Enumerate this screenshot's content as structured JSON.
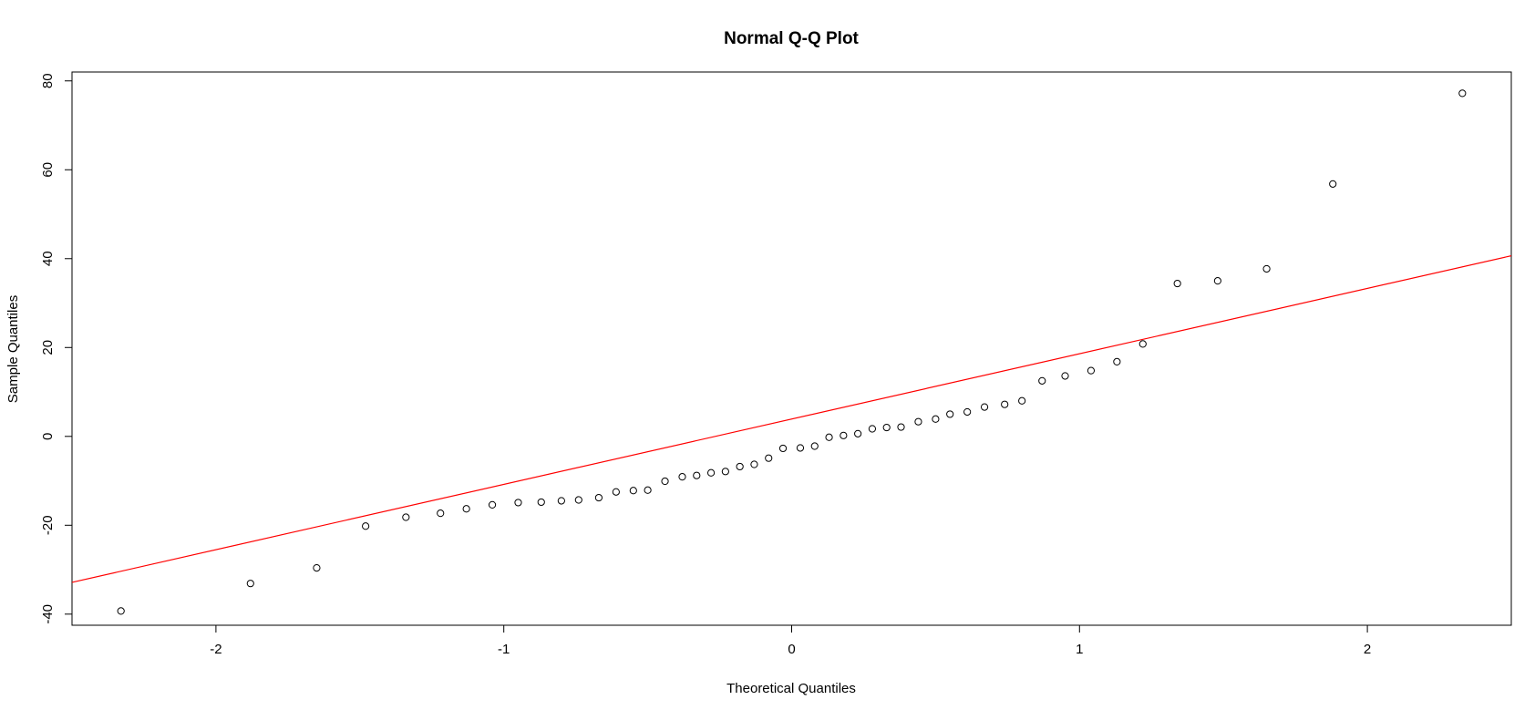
{
  "chart_data": {
    "type": "scatter",
    "title": "Normal Q-Q Plot",
    "xlabel": "Theoretical Quantiles",
    "ylabel": "Sample Quantiles",
    "xlim": [
      -2.5,
      2.5
    ],
    "ylim": [
      -42.5,
      82
    ],
    "xticks": [
      -2,
      -1,
      0,
      1,
      2
    ],
    "yticks": [
      -40,
      -20,
      0,
      20,
      40,
      60,
      80
    ],
    "xtick_labels": [
      "-2",
      "-1",
      "0",
      "1",
      "2"
    ],
    "ytick_labels": [
      "-40",
      "-20",
      "0",
      "20",
      "40",
      "60",
      "80"
    ],
    "grid": false,
    "legend": "none",
    "colors": {
      "points": "#000000",
      "reference_line": "#ff0000",
      "frame": "#000000",
      "background": "#ffffff"
    },
    "points": [
      {
        "x": -2.33,
        "y": -39.3
      },
      {
        "x": -1.88,
        "y": -33.1
      },
      {
        "x": -1.65,
        "y": -29.6
      },
      {
        "x": -1.48,
        "y": -20.2
      },
      {
        "x": -1.34,
        "y": -18.2
      },
      {
        "x": -1.22,
        "y": -17.3
      },
      {
        "x": -1.13,
        "y": -16.3
      },
      {
        "x": -1.04,
        "y": -15.4
      },
      {
        "x": -0.95,
        "y": -14.9
      },
      {
        "x": -0.87,
        "y": -14.8
      },
      {
        "x": -0.8,
        "y": -14.5
      },
      {
        "x": -0.74,
        "y": -14.3
      },
      {
        "x": -0.67,
        "y": -13.8
      },
      {
        "x": -0.61,
        "y": -12.5
      },
      {
        "x": -0.55,
        "y": -12.2
      },
      {
        "x": -0.5,
        "y": -12.1
      },
      {
        "x": -0.44,
        "y": -10.1
      },
      {
        "x": -0.38,
        "y": -9.1
      },
      {
        "x": -0.33,
        "y": -8.8
      },
      {
        "x": -0.28,
        "y": -8.2
      },
      {
        "x": -0.23,
        "y": -7.9
      },
      {
        "x": -0.18,
        "y": -6.8
      },
      {
        "x": -0.13,
        "y": -6.3
      },
      {
        "x": -0.08,
        "y": -4.9
      },
      {
        "x": -0.03,
        "y": -2.7
      },
      {
        "x": 0.03,
        "y": -2.6
      },
      {
        "x": 0.08,
        "y": -2.2
      },
      {
        "x": 0.13,
        "y": -0.2
      },
      {
        "x": 0.18,
        "y": 0.2
      },
      {
        "x": 0.23,
        "y": 0.6
      },
      {
        "x": 0.28,
        "y": 1.7
      },
      {
        "x": 0.33,
        "y": 2.0
      },
      {
        "x": 0.38,
        "y": 2.1
      },
      {
        "x": 0.44,
        "y": 3.3
      },
      {
        "x": 0.5,
        "y": 3.9
      },
      {
        "x": 0.55,
        "y": 5.0
      },
      {
        "x": 0.61,
        "y": 5.5
      },
      {
        "x": 0.67,
        "y": 6.6
      },
      {
        "x": 0.74,
        "y": 7.2
      },
      {
        "x": 0.8,
        "y": 8.0
      },
      {
        "x": 0.87,
        "y": 12.5
      },
      {
        "x": 0.95,
        "y": 13.6
      },
      {
        "x": 1.04,
        "y": 14.8
      },
      {
        "x": 1.13,
        "y": 16.8
      },
      {
        "x": 1.22,
        "y": 20.8
      },
      {
        "x": 1.34,
        "y": 34.4
      },
      {
        "x": 1.48,
        "y": 35.0
      },
      {
        "x": 1.65,
        "y": 37.7
      },
      {
        "x": 1.88,
        "y": 56.8
      },
      {
        "x": 2.33,
        "y": 77.2
      }
    ],
    "reference_line": {
      "intercept": 3.9,
      "slope": 14.7
    }
  }
}
